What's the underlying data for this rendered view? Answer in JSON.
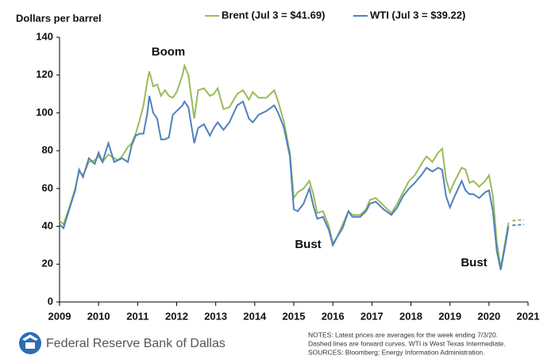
{
  "chart_data": {
    "type": "line",
    "y_label": "Dollars per barrel",
    "x": [
      2009.0,
      2009.1,
      2009.25,
      2009.4,
      2009.5,
      2009.6,
      2009.75,
      2009.9,
      2010.0,
      2010.1,
      2010.25,
      2010.4,
      2010.5,
      2010.6,
      2010.75,
      2010.85,
      2010.95,
      2011.05,
      2011.15,
      2011.25,
      2011.3,
      2011.4,
      2011.5,
      2011.6,
      2011.7,
      2011.8,
      2011.9,
      2012.0,
      2012.15,
      2012.2,
      2012.3,
      2012.45,
      2012.55,
      2012.7,
      2012.85,
      2012.95,
      2013.05,
      2013.2,
      2013.35,
      2013.55,
      2013.7,
      2013.85,
      2013.95,
      2014.1,
      2014.3,
      2014.5,
      2014.6,
      2014.75,
      2014.9,
      2015.0,
      2015.1,
      2015.25,
      2015.4,
      2015.5,
      2015.6,
      2015.75,
      2015.9,
      2016.0,
      2016.1,
      2016.25,
      2016.4,
      2016.5,
      2016.7,
      2016.85,
      2016.95,
      2017.1,
      2017.3,
      2017.5,
      2017.65,
      2017.8,
      2017.95,
      2018.1,
      2018.3,
      2018.4,
      2018.55,
      2018.7,
      2018.8,
      2018.9,
      2019.0,
      2019.1,
      2019.3,
      2019.4,
      2019.5,
      2019.6,
      2019.75,
      2019.9,
      2020.0,
      2020.1,
      2020.2,
      2020.3,
      2020.4,
      2020.5
    ],
    "series": [
      {
        "name": "Brent (Jul 3 = $41.69)",
        "color": "#9bbb59",
        "values": [
          43,
          41,
          50,
          60,
          69,
          67,
          74,
          75,
          77,
          74,
          78,
          76,
          75,
          77,
          82,
          84,
          89,
          96,
          104,
          117,
          122,
          114,
          115,
          109,
          112,
          109,
          108,
          111,
          120,
          125,
          120,
          97,
          112,
          113,
          109,
          110,
          113,
          102,
          103,
          110,
          112,
          107,
          111,
          108,
          108,
          112,
          106,
          95,
          79,
          55,
          58,
          60,
          64,
          57,
          47,
          48,
          40,
          31,
          34,
          41,
          48,
          46,
          46,
          49,
          54,
          55,
          51,
          47,
          52,
          58,
          64,
          67,
          74,
          77,
          74,
          79,
          81,
          65,
          58,
          63,
          71,
          70,
          63,
          64,
          61,
          64,
          67,
          56,
          32,
          18,
          30,
          42
        ]
      },
      {
        "name": "WTI (Jul 3 = $39.22)",
        "color": "#4f81bd",
        "values": [
          41,
          39,
          49,
          59,
          70,
          66,
          76,
          73,
          79,
          74,
          84,
          74,
          75,
          76,
          74,
          83,
          88,
          89,
          89,
          100,
          109,
          100,
          97,
          86,
          86,
          87,
          99,
          101,
          104,
          106,
          103,
          84,
          92,
          94,
          88,
          92,
          95,
          91,
          95,
          104,
          106,
          97,
          95,
          99,
          101,
          104,
          100,
          92,
          77,
          49,
          48,
          52,
          60,
          51,
          44,
          45,
          38,
          30,
          34,
          39,
          48,
          45,
          45,
          48,
          52,
          53,
          49,
          46,
          50,
          56,
          60,
          63,
          68,
          71,
          69,
          71,
          70,
          56,
          50,
          55,
          64,
          59,
          57,
          57,
          55,
          58,
          59,
          48,
          27,
          17,
          28,
          40
        ]
      }
    ],
    "forward": {
      "x": [
        2020.6,
        2020.9
      ],
      "series": [
        {
          "color": "#9bbb59",
          "values": [
            43,
            43.5
          ]
        },
        {
          "color": "#4f81bd",
          "values": [
            40.5,
            41
          ]
        }
      ]
    },
    "xlim": [
      2009,
      2021
    ],
    "xticks": [
      2009,
      2010,
      2011,
      2012,
      2013,
      2014,
      2015,
      2016,
      2017,
      2018,
      2019,
      2020,
      2021
    ],
    "ylim": [
      0,
      140
    ],
    "yticks": [
      0,
      20,
      40,
      60,
      80,
      100,
      120,
      140
    ],
    "grid": false,
    "annotations": [
      "Boom",
      "Bust",
      "Bust"
    ],
    "source": "Federal Reserve Bank of Dallas",
    "notes": [
      "NOTES: Latest prices are averages for the week ending 7/3/20.",
      "Dashed lines are forward curves. WTI is West Texas Intermediate.",
      "SOURCES: Bloomberg; Energy Information Administration."
    ]
  }
}
